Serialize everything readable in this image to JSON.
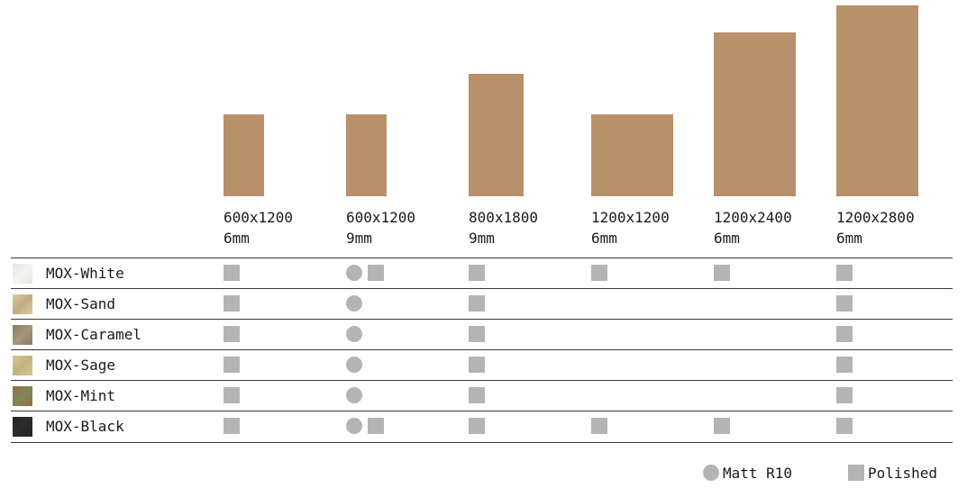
{
  "colors": {
    "tile": "#b8916a",
    "mark": "#b4b4b4"
  },
  "sizes": [
    {
      "dim": "600x1200",
      "thickness": "6mm"
    },
    {
      "dim": "600x1200",
      "thickness": "9mm"
    },
    {
      "dim": "800x1800",
      "thickness": "9mm"
    },
    {
      "dim": "1200x1200",
      "thickness": "6mm"
    },
    {
      "dim": "1200x2400",
      "thickness": "6mm"
    },
    {
      "dim": "1200x2800",
      "thickness": "6mm"
    }
  ],
  "chart_data": {
    "type": "table",
    "columns": [
      "600x1200 6mm",
      "600x1200 9mm",
      "800x1800 9mm",
      "1200x1200 6mm",
      "1200x2400 6mm",
      "1200x2800 6mm"
    ],
    "tile_dimensions_mm": [
      {
        "w": 600,
        "h": 1200
      },
      {
        "w": 600,
        "h": 1200
      },
      {
        "w": 800,
        "h": 1800
      },
      {
        "w": 1200,
        "h": 1200
      },
      {
        "w": 1200,
        "h": 2400
      },
      {
        "w": 1200,
        "h": 2800
      }
    ],
    "rows": [
      {
        "name": "MOX-White",
        "swatch": "#e9e6e1",
        "swatch2": "#f5f3ef",
        "cells": [
          [
            "polished"
          ],
          [
            "matt",
            "polished"
          ],
          [
            "polished"
          ],
          [
            "polished"
          ],
          [
            "polished"
          ],
          [
            "polished"
          ]
        ]
      },
      {
        "name": "MOX-Sand",
        "swatch": "#d8c8a8",
        "swatch2": "#c4ab80",
        "cells": [
          [
            "polished"
          ],
          [
            "matt"
          ],
          [
            "polished"
          ],
          [],
          [],
          [
            "polished"
          ]
        ]
      },
      {
        "name": "MOX-Caramel",
        "swatch": "#8a7a62",
        "swatch2": "#a8967a",
        "cells": [
          [
            "polished"
          ],
          [
            "matt"
          ],
          [
            "polished"
          ],
          [],
          [],
          [
            "polished"
          ]
        ]
      },
      {
        "name": "MOX-Sage",
        "swatch": "#d8c89a",
        "swatch2": "#c2b27c",
        "cells": [
          [
            "polished"
          ],
          [
            "matt"
          ],
          [
            "polished"
          ],
          [],
          [],
          [
            "polished"
          ]
        ]
      },
      {
        "name": "MOX-Mint",
        "swatch": "#9a6a4a",
        "swatch2": "#7a8a5a",
        "cells": [
          [
            "polished"
          ],
          [
            "matt"
          ],
          [
            "polished"
          ],
          [],
          [],
          [
            "polished"
          ]
        ]
      },
      {
        "name": "MOX-Black",
        "swatch": "#222222",
        "swatch2": "#2c2c2c",
        "cells": [
          [
            "polished"
          ],
          [
            "matt",
            "polished"
          ],
          [
            "polished"
          ],
          [
            "polished"
          ],
          [
            "polished"
          ],
          [
            "polished"
          ]
        ]
      }
    ]
  },
  "legend": {
    "matt": "Matt R10",
    "polished": "Polished"
  }
}
